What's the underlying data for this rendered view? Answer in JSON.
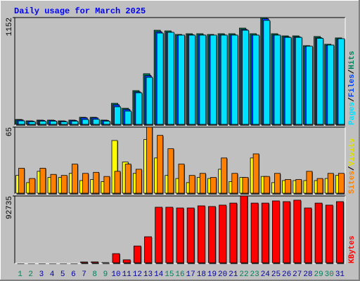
{
  "chart_data": [
    {
      "type": "bar",
      "title": "Daily usage for March 2025",
      "ylim": [
        0,
        1152
      ],
      "yticks": [
        1152
      ],
      "legend_separator": "/",
      "series": [
        {
          "name": "Hits",
          "color": "#00805c",
          "values": [
            60,
            45,
            53,
            53,
            45,
            53,
            83,
            83,
            53,
            233,
            180,
            369,
            550,
            1016,
            1009,
            971,
            979,
            979,
            971,
            979,
            979,
            1039,
            979,
            1152,
            979,
            956,
            956,
            851,
            949,
            866,
            934
          ]
        },
        {
          "name": "Files",
          "color": "#0040ff",
          "values": [
            55,
            42,
            50,
            50,
            42,
            50,
            78,
            78,
            50,
            218,
            168,
            355,
            530,
            1000,
            995,
            960,
            968,
            966,
            958,
            966,
            966,
            1025,
            965,
            1140,
            966,
            945,
            945,
            840,
            935,
            855,
            922
          ]
        },
        {
          "name": "Pages",
          "color": "#00e0ff",
          "values": [
            45,
            36,
            42,
            42,
            36,
            42,
            60,
            62,
            42,
            196,
            150,
            346,
            512,
            986,
            994,
            964,
            964,
            964,
            964,
            964,
            964,
            1016,
            964,
            1122,
            964,
            940,
            940,
            845,
            930,
            858,
            926
          ]
        }
      ]
    },
    {
      "type": "bar",
      "ylim": [
        0,
        65
      ],
      "yticks": [
        65
      ],
      "legend_separator": "/",
      "series": [
        {
          "name": "Visits",
          "color": "#ffff00",
          "values": [
            18,
            11,
            22,
            16,
            16,
            20,
            13,
            14,
            12,
            52,
            31,
            20,
            53,
            35,
            18,
            15,
            11,
            16,
            15,
            24,
            12,
            16,
            35,
            17,
            11,
            13,
            13,
            13,
            13,
            15,
            18
          ]
        },
        {
          "name": "Sites",
          "color": "#ff8000",
          "values": [
            25,
            15,
            25,
            19,
            18,
            29,
            20,
            21,
            17,
            22,
            29,
            24,
            65,
            57,
            44,
            29,
            18,
            20,
            16,
            35,
            20,
            16,
            39,
            17,
            20,
            14,
            14,
            22,
            15,
            20,
            20
          ]
        }
      ]
    },
    {
      "type": "bar",
      "ylim": [
        0,
        92735
      ],
      "yticks": [
        92735
      ],
      "categories": [
        "1",
        "2",
        "3",
        "4",
        "5",
        "6",
        "7",
        "8",
        "9",
        "10",
        "11",
        "12",
        "13",
        "14",
        "15",
        "16",
        "17",
        "18",
        "19",
        "20",
        "21",
        "22",
        "23",
        "24",
        "25",
        "26",
        "27",
        "28",
        "29",
        "30",
        "31"
      ],
      "category_colors": [
        "#00805c",
        "#00805c",
        "#0000a0",
        "#0000a0",
        "#0000a0",
        "#0000a0",
        "#0000a0",
        "#00805c",
        "#00805c",
        "#0000a0",
        "#0000a0",
        "#0000a0",
        "#0000a0",
        "#0000a0",
        "#00805c",
        "#00805c",
        "#0000a0",
        "#0000a0",
        "#0000a0",
        "#0000a0",
        "#0000a0",
        "#00805c",
        "#00805c",
        "#0000a0",
        "#0000a0",
        "#0000a0",
        "#0000a0",
        "#0000a0",
        "#00805c",
        "#00805c",
        "#0000a0"
      ],
      "series": [
        {
          "name": "KBytes",
          "color": "#ff0000",
          "values": [
            900,
            800,
            900,
            850,
            850,
            900,
            2000,
            2100,
            1200,
            13500,
            5000,
            24000,
            36700,
            77300,
            77300,
            76300,
            76300,
            79200,
            78300,
            80200,
            83000,
            92735,
            83000,
            83000,
            86000,
            85000,
            87000,
            76300,
            83000,
            80200,
            85000
          ]
        }
      ]
    }
  ]
}
